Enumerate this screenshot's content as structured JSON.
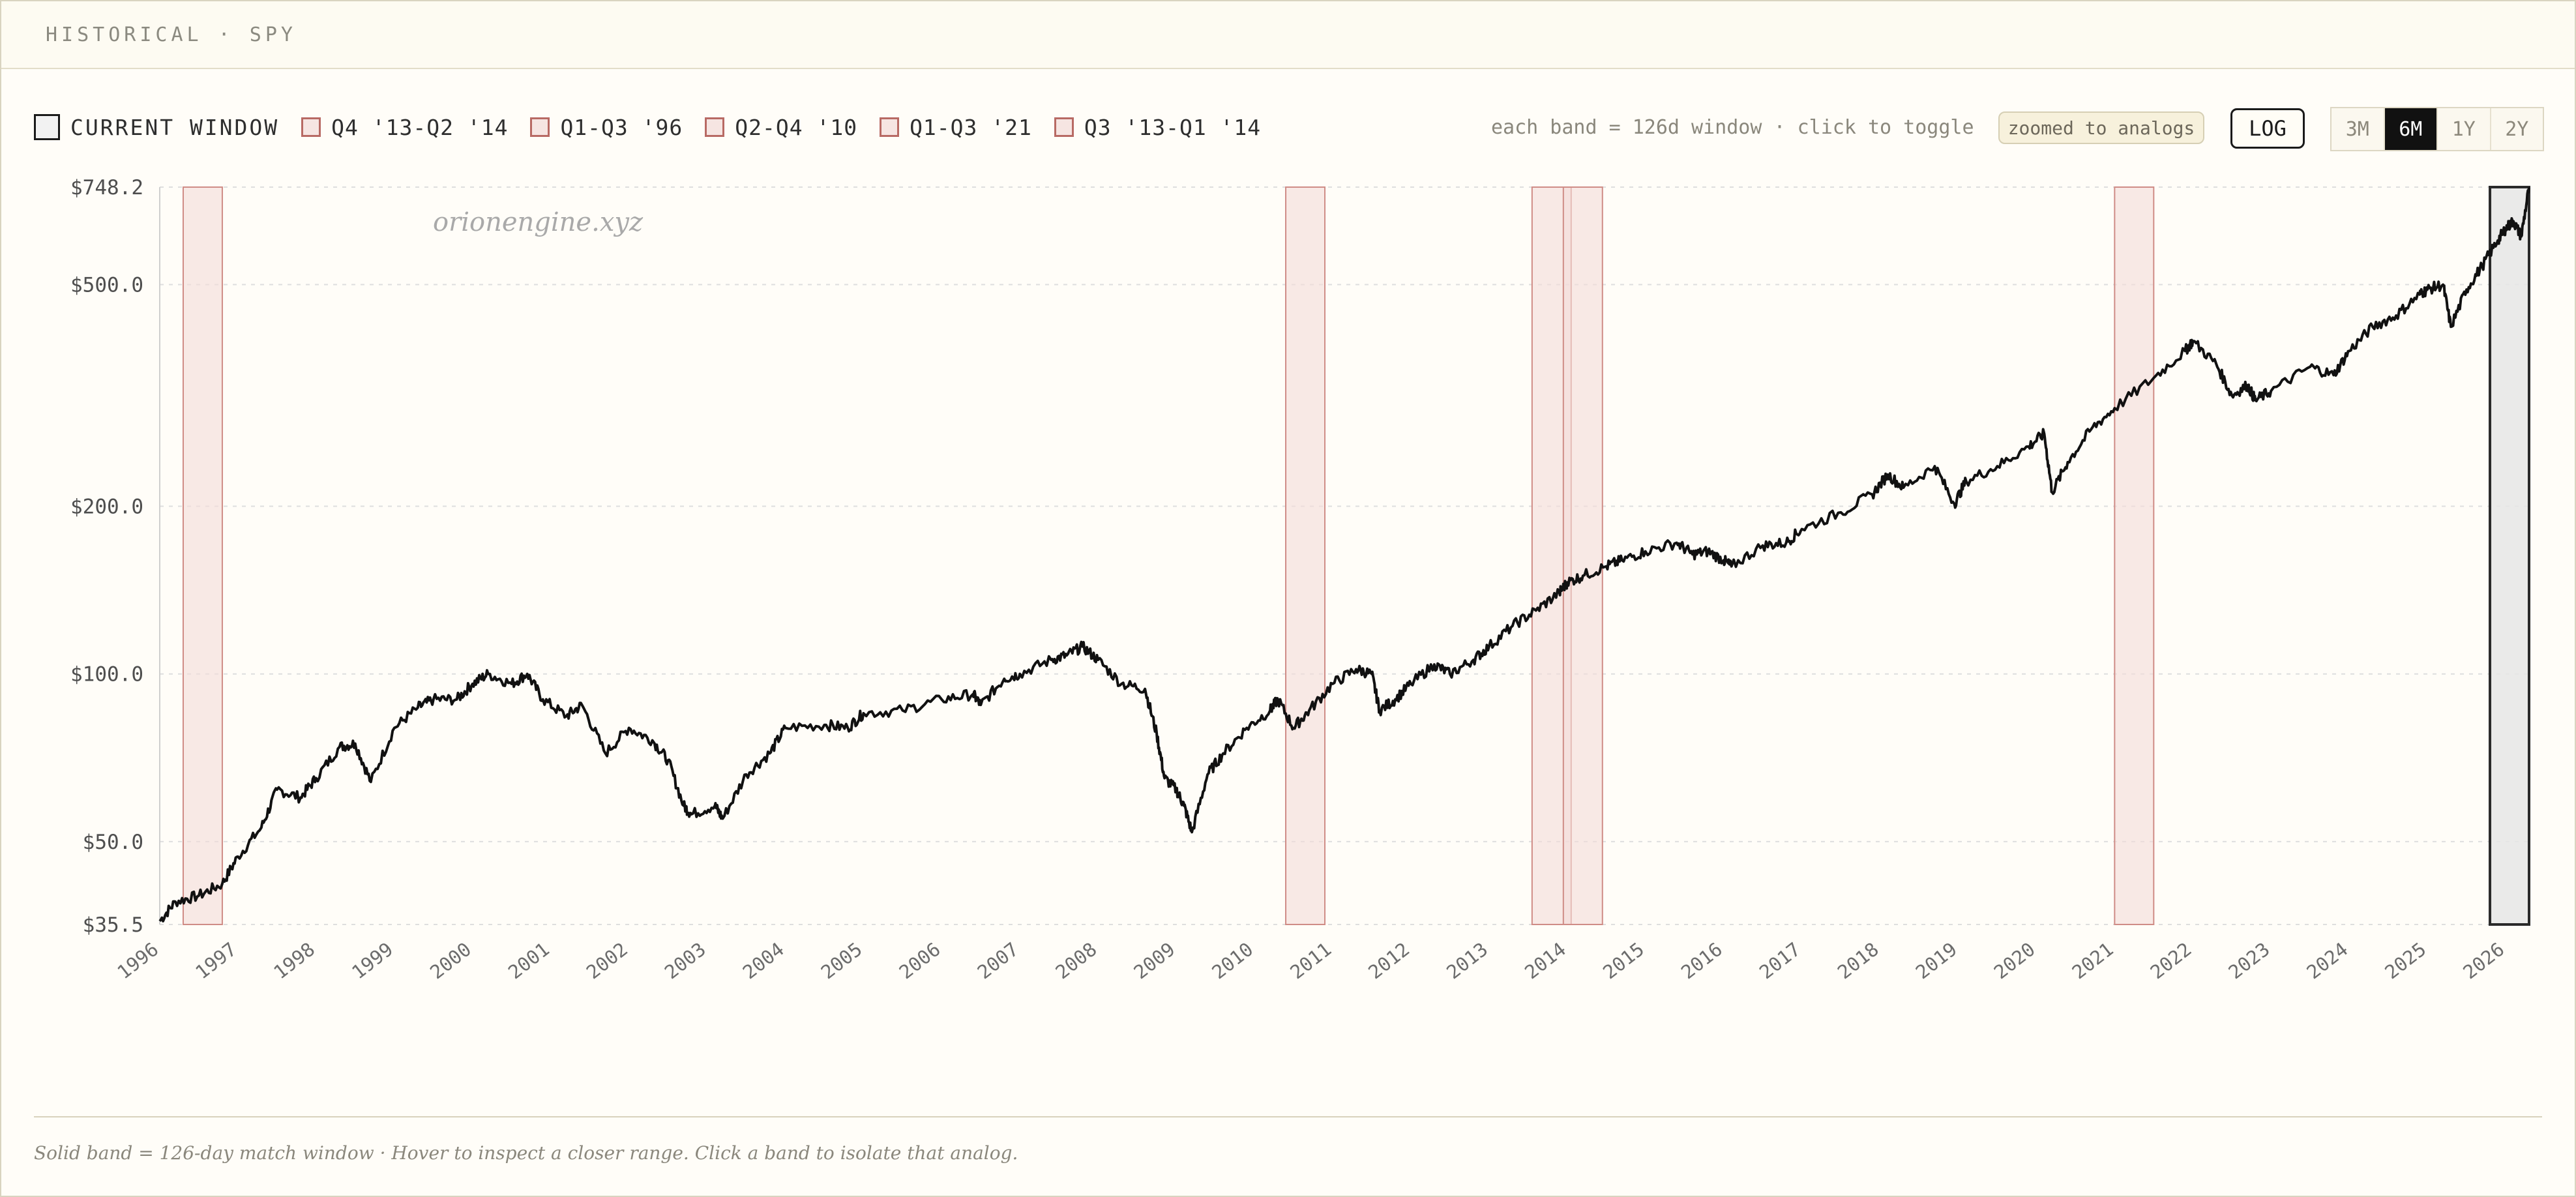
{
  "header": {
    "title": "HISTORICAL · SPY"
  },
  "legend": {
    "items": [
      {
        "label": "CURRENT WINDOW",
        "kind": "current"
      },
      {
        "label": "Q4 '13-Q2 '14",
        "kind": "analog"
      },
      {
        "label": "Q1-Q3 '96",
        "kind": "analog"
      },
      {
        "label": "Q2-Q4 '10",
        "kind": "analog"
      },
      {
        "label": "Q1-Q3 '21",
        "kind": "analog"
      },
      {
        "label": "Q3 '13-Q1 '14",
        "kind": "analog"
      }
    ]
  },
  "controls": {
    "hint": "each band = 126d window · click to toggle",
    "zoom_badge": "zoomed to analogs",
    "log_label": "LOG",
    "ranges": [
      {
        "label": "3M",
        "active": false
      },
      {
        "label": "6M",
        "active": true
      },
      {
        "label": "1Y",
        "active": false
      },
      {
        "label": "2Y",
        "active": false
      }
    ]
  },
  "watermark": "orionengine.xyz",
  "footer": {
    "note": "Solid band = 126-day match window · Hover to inspect a closer range. Click a band to isolate that analog."
  },
  "colors": {
    "line": "#111111",
    "band_fill": "#f3dcd9",
    "band_stroke": "#cf8c86",
    "current_fill": "#e6e6e6",
    "current_stroke": "#2a2a2a",
    "grid": "#dedede"
  },
  "chart_data": {
    "type": "line",
    "ticker": "SPY",
    "yscale": "log",
    "ylim": [
      35.5,
      748.2
    ],
    "xlim": [
      1996.0,
      2026.3
    ],
    "y_ticks": [
      {
        "value": 748.2,
        "label": "$748.2"
      },
      {
        "value": 500,
        "label": "$500.0"
      },
      {
        "value": 200,
        "label": "$200.0"
      },
      {
        "value": 100,
        "label": "$100.0"
      },
      {
        "value": 50,
        "label": "$50.0"
      },
      {
        "value": 35.5,
        "label": "$35.5"
      }
    ],
    "x_ticks": [
      "1996",
      "1997",
      "1998",
      "1999",
      "2000",
      "2001",
      "2002",
      "2003",
      "2004",
      "2005",
      "2006",
      "2007",
      "2008",
      "2009",
      "2010",
      "2011",
      "2012",
      "2013",
      "2014",
      "2015",
      "2016",
      "2017",
      "2018",
      "2019",
      "2020",
      "2021",
      "2022",
      "2023",
      "2024",
      "2025",
      "2026"
    ],
    "grid": "horizontal-dashed",
    "bands": [
      {
        "label": "Q1-Q3 '96",
        "start": 1996.3,
        "end": 1996.8,
        "kind": "analog"
      },
      {
        "label": "Q2-Q4 '10",
        "start": 2010.4,
        "end": 2010.9,
        "kind": "analog"
      },
      {
        "label": "Q3 '13-Q1 '14",
        "start": 2013.55,
        "end": 2014.05,
        "kind": "analog"
      },
      {
        "label": "Q4 '13-Q2 '14",
        "start": 2013.95,
        "end": 2014.45,
        "kind": "analog"
      },
      {
        "label": "Q1-Q3 '21",
        "start": 2021.0,
        "end": 2021.5,
        "kind": "analog"
      },
      {
        "label": "CURRENT WINDOW",
        "start": 2025.8,
        "end": 2026.3,
        "kind": "current"
      }
    ],
    "series": [
      {
        "points": [
          [
            1996.0,
            36
          ],
          [
            1996.2,
            39
          ],
          [
            1996.5,
            40
          ],
          [
            1996.8,
            42
          ],
          [
            1997.0,
            47
          ],
          [
            1997.3,
            53
          ],
          [
            1997.5,
            62
          ],
          [
            1997.8,
            60
          ],
          [
            1998.0,
            65
          ],
          [
            1998.3,
            74
          ],
          [
            1998.5,
            75
          ],
          [
            1998.7,
            64
          ],
          [
            1999.0,
            80
          ],
          [
            1999.3,
            87
          ],
          [
            1999.5,
            90
          ],
          [
            1999.8,
            90
          ],
          [
            2000.0,
            96
          ],
          [
            2000.2,
            100
          ],
          [
            2000.5,
            96
          ],
          [
            2000.7,
            100
          ],
          [
            2000.9,
            90
          ],
          [
            2001.2,
            84
          ],
          [
            2001.4,
            88
          ],
          [
            2001.7,
            72
          ],
          [
            2002.0,
            80
          ],
          [
            2002.3,
            76
          ],
          [
            2002.5,
            70
          ],
          [
            2002.7,
            58
          ],
          [
            2002.8,
            56
          ],
          [
            2003.1,
            58
          ],
          [
            2003.2,
            55
          ],
          [
            2003.5,
            66
          ],
          [
            2003.8,
            72
          ],
          [
            2004.0,
            80
          ],
          [
            2004.5,
            81
          ],
          [
            2004.8,
            80
          ],
          [
            2005.0,
            85
          ],
          [
            2005.5,
            86
          ],
          [
            2006.0,
            90
          ],
          [
            2006.4,
            92
          ],
          [
            2006.5,
            88
          ],
          [
            2006.8,
            98
          ],
          [
            2007.0,
            100
          ],
          [
            2007.4,
            106
          ],
          [
            2007.6,
            108
          ],
          [
            2007.8,
            112
          ],
          [
            2008.0,
            106
          ],
          [
            2008.3,
            96
          ],
          [
            2008.6,
            94
          ],
          [
            2008.75,
            78
          ],
          [
            2008.85,
            65
          ],
          [
            2009.0,
            62
          ],
          [
            2009.1,
            58
          ],
          [
            2009.2,
            52
          ],
          [
            2009.4,
            66
          ],
          [
            2009.6,
            72
          ],
          [
            2009.9,
            80
          ],
          [
            2010.2,
            86
          ],
          [
            2010.3,
            90
          ],
          [
            2010.5,
            80
          ],
          [
            2010.7,
            86
          ],
          [
            2011.0,
            96
          ],
          [
            2011.3,
            102
          ],
          [
            2011.5,
            100
          ],
          [
            2011.6,
            86
          ],
          [
            2011.8,
            90
          ],
          [
            2012.0,
            96
          ],
          [
            2012.3,
            104
          ],
          [
            2012.5,
            100
          ],
          [
            2012.8,
            106
          ],
          [
            2013.0,
            112
          ],
          [
            2013.3,
            122
          ],
          [
            2013.6,
            130
          ],
          [
            2013.9,
            140
          ],
          [
            2014.0,
            146
          ],
          [
            2014.2,
            150
          ],
          [
            2014.5,
            156
          ],
          [
            2014.7,
            160
          ],
          [
            2015.0,
            166
          ],
          [
            2015.4,
            172
          ],
          [
            2015.6,
            164
          ],
          [
            2015.8,
            166
          ],
          [
            2016.0,
            160
          ],
          [
            2016.1,
            156
          ],
          [
            2016.5,
            170
          ],
          [
            2016.8,
            172
          ],
          [
            2017.0,
            182
          ],
          [
            2017.5,
            195
          ],
          [
            2017.9,
            210
          ],
          [
            2018.1,
            228
          ],
          [
            2018.3,
            216
          ],
          [
            2018.7,
            236
          ],
          [
            2018.95,
            202
          ],
          [
            2019.1,
            222
          ],
          [
            2019.5,
            236
          ],
          [
            2019.9,
            256
          ],
          [
            2020.1,
            270
          ],
          [
            2020.2,
            212
          ],
          [
            2020.4,
            240
          ],
          [
            2020.7,
            275
          ],
          [
            2021.0,
            300
          ],
          [
            2021.5,
            340
          ],
          [
            2021.9,
            380
          ],
          [
            2022.0,
            396
          ],
          [
            2022.3,
            360
          ],
          [
            2022.5,
            316
          ],
          [
            2022.7,
            330
          ],
          [
            2022.8,
            310
          ],
          [
            2023.0,
            322
          ],
          [
            2023.5,
            356
          ],
          [
            2023.8,
            344
          ],
          [
            2024.0,
            380
          ],
          [
            2024.3,
            420
          ],
          [
            2024.6,
            440
          ],
          [
            2024.9,
            480
          ],
          [
            2025.0,
            490
          ],
          [
            2025.2,
            500
          ],
          [
            2025.3,
            420
          ],
          [
            2025.5,
            490
          ],
          [
            2025.7,
            540
          ],
          [
            2025.9,
            600
          ],
          [
            2026.0,
            630
          ],
          [
            2026.1,
            650
          ],
          [
            2026.2,
            610
          ],
          [
            2026.3,
            748
          ]
        ]
      }
    ]
  }
}
